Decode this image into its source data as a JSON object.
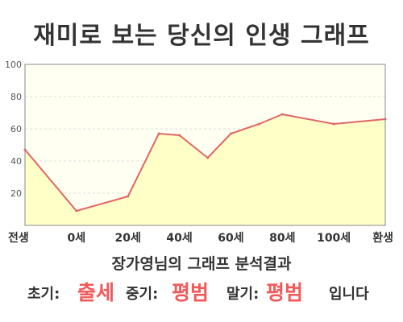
{
  "title": "재미로 보는 당신의 인생 그래프",
  "chart_data": {
    "type": "area",
    "x_labels": [
      "전생",
      "0세",
      "20세",
      "40세",
      "60세",
      "80세",
      "100세",
      "환생"
    ],
    "y_ticks": [
      20,
      40,
      60,
      80,
      100
    ],
    "ylim": [
      0,
      100
    ],
    "grid": true,
    "colors": {
      "line": "#e06666",
      "fill": "#ffffc8",
      "background": "#fffff2"
    },
    "points": [
      {
        "x": "전생",
        "y": 47
      },
      {
        "x": "0세",
        "y": 9
      },
      {
        "x": "20세",
        "y": 18
      },
      {
        "x": "30세",
        "y": 57
      },
      {
        "x": "40세",
        "y": 56
      },
      {
        "x": "50세",
        "y": 42
      },
      {
        "x": "60세",
        "y": 57
      },
      {
        "x": "70세",
        "y": 63
      },
      {
        "x": "80세",
        "y": 69
      },
      {
        "x": "100세",
        "y": 63
      },
      {
        "x": "환생",
        "y": 66
      }
    ]
  },
  "result": {
    "subtitle": "장가영님의 그래프 분석결과",
    "early_label": "초기:",
    "early_value": "출세",
    "middle_label": "중기:",
    "middle_value": "평범",
    "late_label": "말기:",
    "late_value": "평범",
    "ending": "입니다"
  }
}
